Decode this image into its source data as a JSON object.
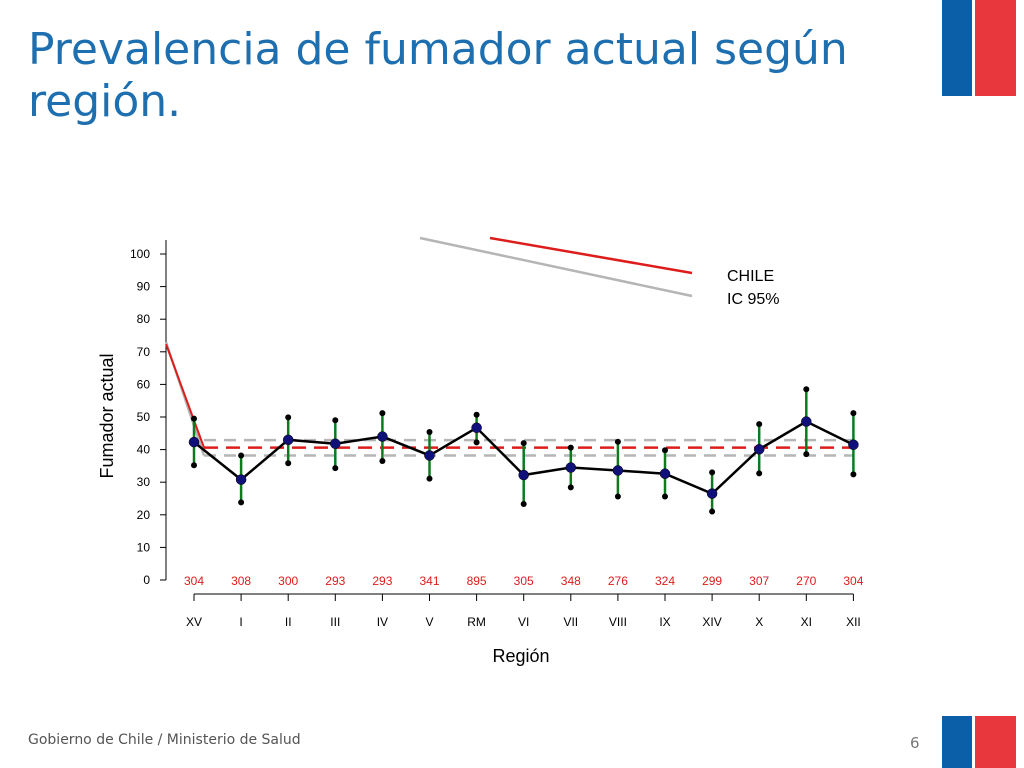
{
  "slide": {
    "title": "Prevalencia de fumador actual según región.",
    "footer": "Gobierno de Chile / Ministerio de Salud",
    "page_number": "6"
  },
  "colors": {
    "title": "#1e6fb0",
    "flag_blue": "#0b5fa8",
    "flag_red": "#e8383d",
    "national_line": "#dd1c1c",
    "ci_line": "#b5b5b5",
    "series_line": "#000000",
    "point_fill": "#10107a",
    "error_bar": "#0e7a1e",
    "sample_size": "#dd1c1c"
  },
  "chart_data": {
    "type": "line",
    "ylabel": "Fumador actual",
    "xlabel": "Región",
    "ylim": [
      0,
      100
    ],
    "yticks": [
      0,
      10,
      20,
      30,
      40,
      50,
      60,
      70,
      80,
      90,
      100
    ],
    "categories": [
      "XV",
      "I",
      "II",
      "III",
      "IV",
      "V",
      "RM",
      "VI",
      "VII",
      "VIII",
      "IX",
      "XIV",
      "X",
      "XI",
      "XII"
    ],
    "series": [
      {
        "values": [
          42.3,
          30.8,
          43.0,
          41.8,
          44.0,
          38.2,
          46.7,
          32.2,
          34.5,
          33.6,
          32.6,
          26.5,
          40.1,
          48.6,
          41.5
        ],
        "ci_lower": [
          35.2,
          23.8,
          35.8,
          34.3,
          36.5,
          31.1,
          42.2,
          23.3,
          28.4,
          25.6,
          25.6,
          21.0,
          32.7,
          38.6,
          32.4
        ],
        "ci_upper": [
          49.5,
          38.2,
          49.9,
          49.0,
          51.2,
          45.4,
          50.7,
          42.0,
          40.6,
          42.4,
          39.8,
          33.0,
          47.8,
          58.5,
          51.2
        ]
      }
    ],
    "sample_sizes": [
      "304",
      "308",
      "300",
      "293",
      "293",
      "341",
      "895",
      "305",
      "348",
      "276",
      "324",
      "299",
      "307",
      "270",
      "304"
    ],
    "reference": {
      "national": 40.6,
      "ci_lower": 38.2,
      "ci_upper": 42.9
    },
    "legend": {
      "national_label": "CHILE",
      "ci_label": "IC 95%"
    },
    "grid": false
  }
}
